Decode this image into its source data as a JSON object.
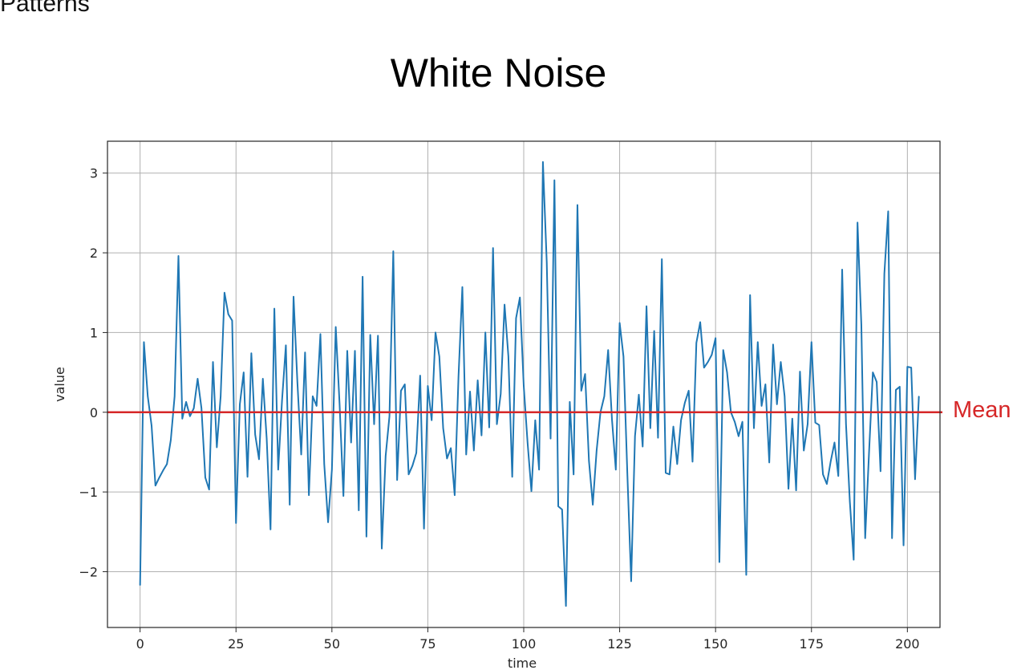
{
  "slide": {
    "top_clip_text": "Patterns",
    "title": "White Noise",
    "mean_label": "Mean"
  },
  "colors": {
    "series": "#1f77b4",
    "mean_line": "#d62728",
    "grid": "#b0b0b0",
    "axes": "#262626"
  },
  "chart_data": {
    "type": "line",
    "title": "",
    "xlabel": "time",
    "ylabel": "value",
    "xlim": [
      -8.5,
      208.5
    ],
    "ylim": [
      -2.7,
      3.4
    ],
    "xticks": [
      0,
      25,
      50,
      75,
      100,
      125,
      150,
      175,
      200
    ],
    "xtick_labels": [
      "0",
      "25",
      "50",
      "75",
      "100",
      "125",
      "150",
      "175",
      "200"
    ],
    "yticks": [
      -2,
      -1,
      0,
      1,
      2,
      3
    ],
    "ytick_labels": [
      "−2",
      "−1",
      "0",
      "1",
      "2",
      "3"
    ],
    "grid": true,
    "mean": 0,
    "series": [
      {
        "values": [
          -2.17,
          0.88,
          0.2,
          -0.17,
          -0.92,
          -0.82,
          -0.73,
          -0.65,
          -0.35,
          0.2,
          1.96,
          -0.08,
          0.13,
          -0.05,
          0.05,
          0.42,
          0.05,
          -0.82,
          -0.97,
          0.63,
          -0.44,
          0.2,
          1.5,
          1.23,
          1.15,
          -1.39,
          0.1,
          0.5,
          -0.81,
          0.74,
          -0.28,
          -0.59,
          0.42,
          -0.33,
          -1.47,
          1.3,
          -0.72,
          0.15,
          0.84,
          -1.16,
          1.45,
          0.38,
          -0.53,
          0.75,
          -1.04,
          0.2,
          0.08,
          0.98,
          -0.65,
          -1.38,
          -0.72,
          1.07,
          0.1,
          -1.05,
          0.77,
          -0.38,
          0.77,
          -1.23,
          1.7,
          -1.56,
          0.97,
          -0.15,
          0.96,
          -1.71,
          -0.55,
          -0.05,
          2.02,
          -0.85,
          0.27,
          0.35,
          -0.78,
          -0.67,
          -0.51,
          0.46,
          -1.46,
          0.33,
          -0.1,
          1.0,
          0.7,
          -0.2,
          -0.58,
          -0.45,
          -1.04,
          0.45,
          1.57,
          -0.53,
          0.26,
          -0.48,
          0.4,
          -0.29,
          1.0,
          -0.19,
          2.06,
          -0.15,
          0.23,
          1.35,
          0.7,
          -0.81,
          1.18,
          1.44,
          0.33,
          -0.38,
          -0.99,
          -0.1,
          -0.72,
          3.14,
          1.88,
          -0.33,
          2.91,
          -1.18,
          -1.22,
          -2.43,
          0.13,
          -0.78,
          2.6,
          0.27,
          0.48,
          -0.61,
          -1.16,
          -0.48,
          0.0,
          0.2,
          0.78,
          -0.09,
          -0.72,
          1.12,
          0.7,
          -0.76,
          -2.12,
          -0.3,
          0.22,
          -0.43,
          1.33,
          -0.2,
          1.02,
          -0.32,
          1.92,
          -0.76,
          -0.78,
          -0.18,
          -0.65,
          -0.1,
          0.12,
          0.27,
          -0.62,
          0.87,
          1.13,
          0.56,
          0.63,
          0.72,
          0.93,
          -1.88,
          0.78,
          0.5,
          0.0,
          -0.12,
          -0.3,
          -0.12,
          -2.04,
          1.47,
          -0.2,
          0.88,
          0.08,
          0.35,
          -0.63,
          0.85,
          0.1,
          0.63,
          0.2,
          -0.96,
          -0.08,
          -0.98,
          0.51,
          -0.48,
          -0.15,
          0.88,
          -0.13,
          -0.16,
          -0.78,
          -0.9,
          -0.62,
          -0.38,
          -0.8,
          1.79,
          -0.15,
          -1.12,
          -1.85,
          2.38,
          1.1,
          -1.58,
          -0.51,
          0.5,
          0.38,
          -0.74,
          1.74,
          2.52,
          -1.58,
          0.28,
          0.32,
          -1.67,
          0.57,
          0.56,
          -0.84,
          0.2
        ]
      }
    ]
  }
}
